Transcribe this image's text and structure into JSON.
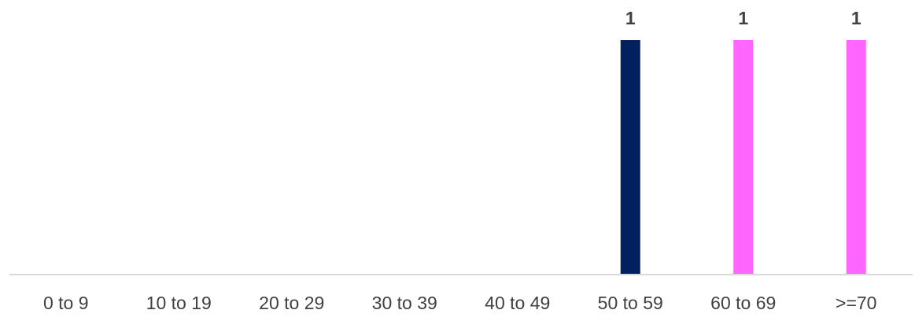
{
  "chart_data": {
    "type": "bar",
    "categories": [
      "0 to 9",
      "10 to 19",
      "20 to 29",
      "30 to 39",
      "40 to 49",
      "50 to 59",
      "60 to 69",
      ">=70"
    ],
    "series": [
      {
        "values": [
          0,
          0,
          0,
          0,
          0,
          1,
          0,
          0
        ],
        "color": "#002060"
      },
      {
        "values": [
          0,
          0,
          0,
          0,
          0,
          0,
          1,
          1
        ],
        "color": "#FF66FF"
      }
    ],
    "data_labels": [
      null,
      null,
      null,
      null,
      null,
      "1",
      "1",
      "1"
    ],
    "ylim": [
      0,
      1
    ],
    "grid": false,
    "legend": "none",
    "axis_color": "#D9D9D9",
    "text_color": "#404040"
  }
}
